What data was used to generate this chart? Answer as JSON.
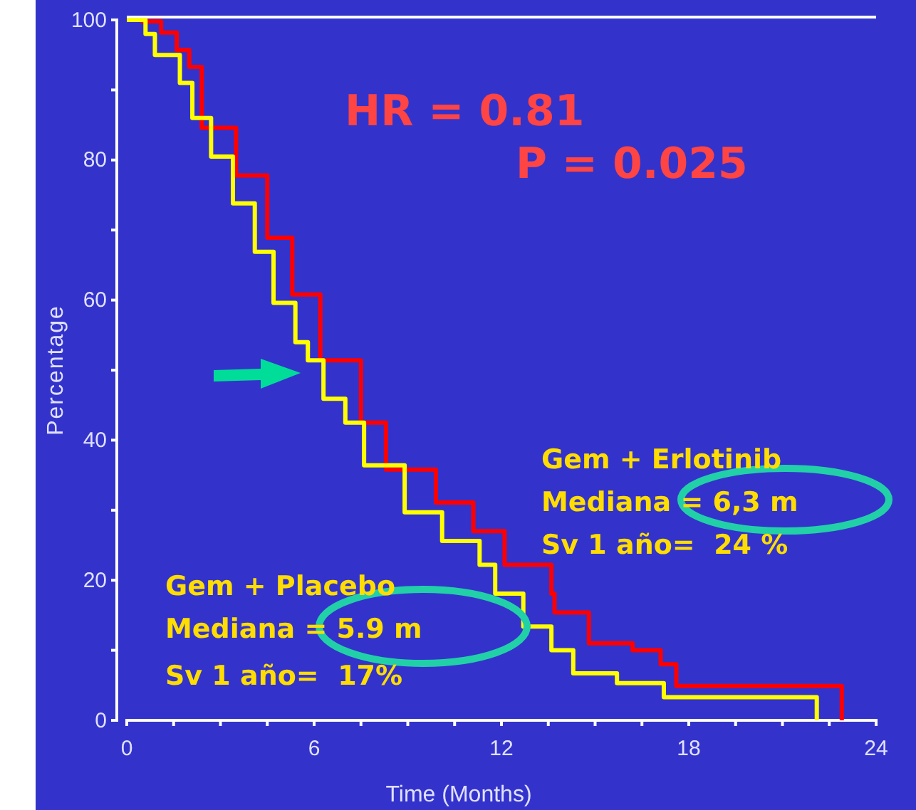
{
  "chart_data": {
    "type": "step",
    "xlabel": "Time (Months)",
    "ylabel": "Percentage",
    "xlim": [
      0,
      24
    ],
    "ylim": [
      0,
      100
    ],
    "xticks": [
      0,
      {
        "value": 1.5,
        "label": null
      },
      {
        "value": 3,
        "label": null
      },
      {
        "value": 4.5,
        "label": null
      },
      6,
      {
        "value": 7.5,
        "label": null
      },
      {
        "value": 9,
        "label": null
      },
      {
        "value": 10.5,
        "label": null
      },
      12,
      {
        "value": 13.5,
        "label": null
      },
      {
        "value": 15,
        "label": null
      },
      {
        "value": 16.5,
        "label": null
      },
      18,
      {
        "value": 19.5,
        "label": null
      },
      {
        "value": 21,
        "label": null
      },
      {
        "value": 22.5,
        "label": null
      },
      24
    ],
    "yticks": [
      0,
      {
        "value": 10,
        "label": null
      },
      20,
      {
        "value": 30,
        "label": null
      },
      40,
      {
        "value": 50,
        "label": null
      },
      60,
      {
        "value": 70,
        "label": null
      },
      80,
      {
        "value": 90,
        "label": null
      },
      100
    ],
    "grid": false,
    "marker": "none",
    "line_style": "solid",
    "series": [
      {
        "color": "#ff0000",
        "x": [
          0,
          0.5,
          1.1,
          1.6,
          2.0,
          2.4,
          3.5,
          4.5,
          5.3,
          6.2,
          7.5,
          8.3,
          9.9,
          11.1,
          12.1,
          13.6,
          13.7,
          14.8,
          16.2,
          17.1,
          17.6,
          22.9,
          22.9
        ],
        "values": [
          100,
          99.8,
          98.2,
          95.7,
          93.3,
          84.6,
          77.8,
          68.9,
          60.8,
          51.4,
          42.5,
          35.8,
          31.1,
          27.0,
          22.2,
          18.1,
          15.4,
          11.0,
          10.0,
          8.0,
          4.9,
          4.9,
          0
        ]
      },
      {
        "color": "#ffff00",
        "x": [
          0,
          0.6,
          0.9,
          1.7,
          2.1,
          2.7,
          3.4,
          4.1,
          4.7,
          5.4,
          5.8,
          6.3,
          7.0,
          7.6,
          8.9,
          10.1,
          11.3,
          11.8,
          12.7,
          13.6,
          14.3,
          15.7,
          17.2,
          22.1,
          22.1
        ],
        "values": [
          100,
          98,
          95,
          91,
          86,
          80.5,
          73.8,
          66.9,
          59.6,
          54,
          51.4,
          45.9,
          42.5,
          36.4,
          29.7,
          25.6,
          22.2,
          18.1,
          13.4,
          10.0,
          6.7,
          5.3,
          3.3,
          3.3,
          0
        ]
      }
    ],
    "annotations": [
      "HR = 0.81",
      "P = 0.025",
      "Gem + Erlotinib",
      "Mediana = 6,3 m",
      "Sv 1 año=  24 %",
      "Gem + Placebo",
      "Mediana = 5.9 m",
      "Sv 1 año=  17%"
    ]
  }
}
